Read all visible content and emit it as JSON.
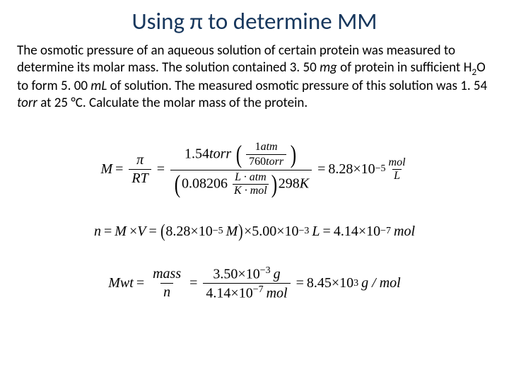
{
  "title": "Using π to determine MM",
  "body_pre": "The osmotic pressure of an aqueous solution of certain protein was measured to determine its molar mass.  The solution contained 3. 50 ",
  "body_mg": "mg",
  "body_mid1": " of protein in sufficient H",
  "body_sub2": "2",
  "body_mid2": "O to form 5. 00 ",
  "body_mL": "mL",
  "body_mid3": " of solution.  The measured osmotic pressure of this solution was 1. 54 ",
  "body_torr": "torr",
  "body_end": " at 25 °C. Calculate the molar mass of the protein.",
  "eq1": {
    "M": "M",
    "eq": "=",
    "pi": "π",
    "RT": "RT",
    "torr_val": "1.54",
    "torr_unit": "torr",
    "atm_num": "1",
    "atm_unit": "atm",
    "torr_den": "760",
    "torr_den_unit": "torr",
    "R_val": "0.08206",
    "R_num": "L · atm",
    "R_den": "K · mol",
    "T": "298",
    "T_unit": "K",
    "result_val": "8.28",
    "result_exp": "−5",
    "result_num": "mol",
    "result_den": "L"
  },
  "eq2": {
    "n": "n",
    "M": "M",
    "V": "V",
    "M_val": "8.28",
    "M_exp": "−5",
    "M_unit": "M",
    "V_val": "5.00",
    "V_exp": "−3",
    "V_unit": "L",
    "result_val": "4.14",
    "result_exp": "−7",
    "result_unit": "mol"
  },
  "eq3": {
    "Mwt": "Mwt",
    "mass": "mass",
    "n": "n",
    "mass_val": "3.50",
    "mass_exp": "−3",
    "mass_unit": "g",
    "n_val": "4.14",
    "n_exp": "−7",
    "n_unit": "mol",
    "result_val": "8.45",
    "result_exp": "3",
    "result_unit": "g / mol"
  },
  "ten": "10",
  "times": "×",
  "eq": "="
}
